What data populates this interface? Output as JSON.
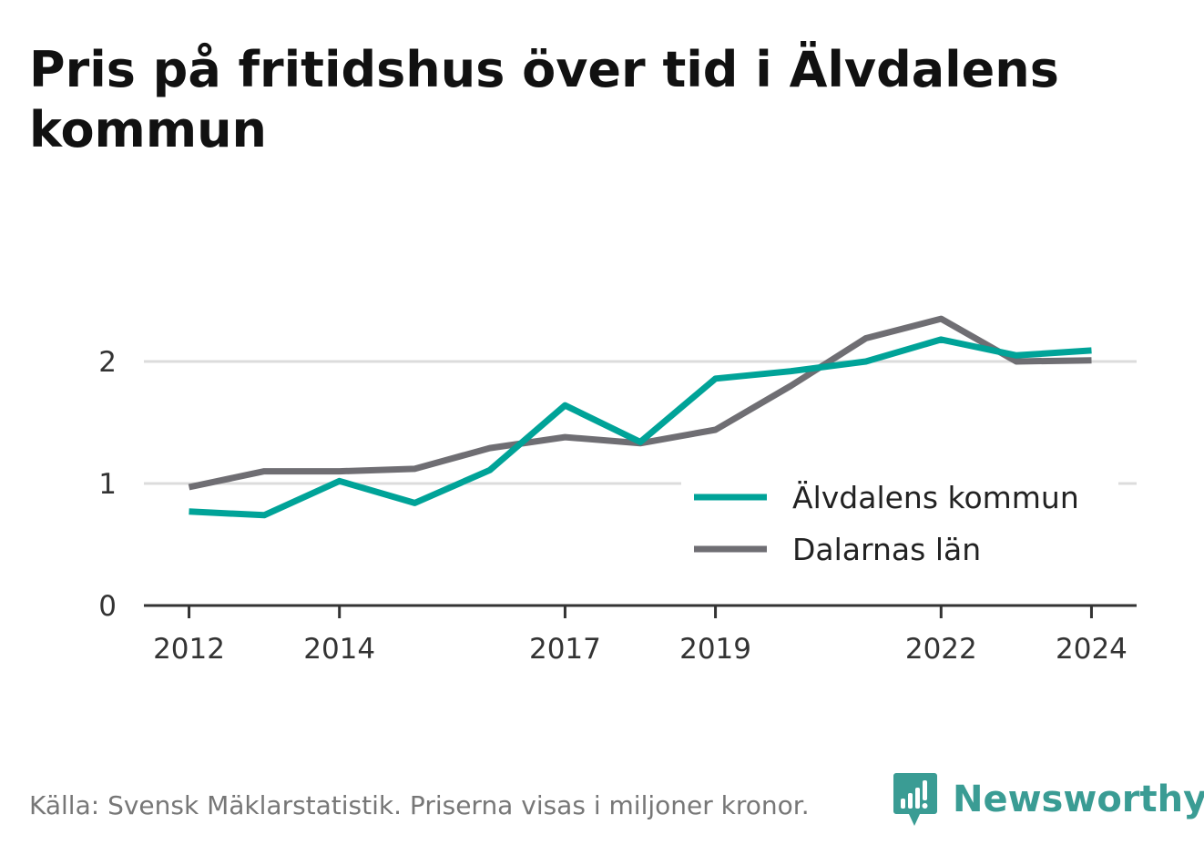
{
  "title": "Pris på fritidshus över tid i Älvdalens kommun",
  "source": "Källa: Svensk Mäklarstatistik. Priserna visas i miljoner kronor.",
  "brand": {
    "name": "Newsworthy",
    "icon": "newsworthy-logo-icon",
    "color": "#3a9c94"
  },
  "chart_data": {
    "type": "line",
    "title": "Pris på fritidshus över tid i Älvdalens kommun",
    "xlabel": "",
    "ylabel": "",
    "x": [
      2012,
      2013,
      2014,
      2015,
      2016,
      2017,
      2018,
      2019,
      2020,
      2021,
      2022,
      2023,
      2024
    ],
    "xticks": [
      2012,
      2014,
      2017,
      2019,
      2022,
      2024
    ],
    "yticks": [
      0,
      1,
      2
    ],
    "ylim": [
      0,
      2.5
    ],
    "xlim": [
      2011.4,
      2024.6
    ],
    "grid": true,
    "legend_position": "bottom-right",
    "series": [
      {
        "name": "Älvdalens kommun",
        "color": "#00a398",
        "values": [
          0.77,
          0.74,
          1.02,
          0.84,
          1.11,
          1.64,
          1.34,
          1.86,
          1.92,
          2.0,
          2.18,
          2.05,
          2.09
        ]
      },
      {
        "name": "Dalarnas län",
        "color": "#6f6e73",
        "values": [
          0.97,
          1.1,
          1.1,
          1.12,
          1.29,
          1.38,
          1.33,
          1.44,
          1.8,
          2.19,
          2.35,
          2.0,
          2.01
        ]
      }
    ]
  }
}
